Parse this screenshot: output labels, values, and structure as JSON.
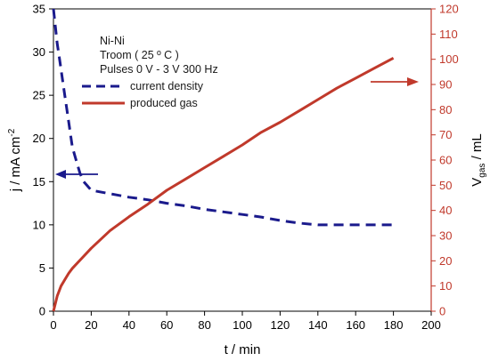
{
  "chart_data": {
    "type": "line",
    "x_label": "t / min",
    "y_left_label": "j / mA cm",
    "y_left_label_sup": "-2",
    "y_right_label": "V",
    "y_right_label_sub": "gas",
    "y_right_label_unit": " / mL",
    "xlim": [
      0,
      200
    ],
    "y_left_lim": [
      0,
      35
    ],
    "y_right_lim": [
      0,
      120
    ],
    "x_ticks": [
      0,
      20,
      40,
      60,
      80,
      100,
      120,
      140,
      160,
      180,
      200
    ],
    "y_left_ticks": [
      0,
      5,
      10,
      15,
      20,
      25,
      30,
      35
    ],
    "y_right_ticks": [
      0,
      10,
      20,
      30,
      40,
      50,
      60,
      70,
      80,
      90,
      100,
      110,
      120
    ],
    "annotations": [
      "Ni-Ni",
      "Troom ( 25 º C )",
      "Pulses 0 V - 3 V  300 Hz"
    ],
    "grid": false,
    "legend_position": "upper-left",
    "colors": {
      "current_density": "#1a1a8c",
      "produced_gas": "#c0392b",
      "right_axis": "#c0392b"
    },
    "series": [
      {
        "name": "current density",
        "axis": "left",
        "style": "dashed",
        "x": [
          0,
          1,
          2,
          3,
          4,
          5,
          6,
          8,
          10,
          12,
          14,
          16,
          18,
          20,
          30,
          40,
          50,
          60,
          70,
          80,
          90,
          100,
          110,
          120,
          130,
          140,
          160,
          180
        ],
        "y": [
          35,
          33,
          31,
          29.5,
          28,
          26.5,
          25,
          22,
          19,
          17.5,
          16,
          15,
          14.5,
          14,
          13.6,
          13.2,
          12.9,
          12.5,
          12.2,
          11.8,
          11.5,
          11.2,
          10.9,
          10.5,
          10.2,
          10,
          10,
          10
        ]
      },
      {
        "name": "produced gas",
        "axis": "right",
        "style": "solid",
        "x": [
          0,
          1,
          2,
          4,
          6,
          8,
          10,
          15,
          20,
          30,
          40,
          50,
          60,
          70,
          80,
          90,
          100,
          110,
          120,
          130,
          140,
          150,
          160,
          170,
          180
        ],
        "y": [
          0,
          3,
          6,
          10,
          12.5,
          15,
          17,
          21,
          25,
          32,
          37.5,
          42.5,
          48,
          52.5,
          57,
          61.5,
          66,
          71,
          75,
          79.5,
          84,
          88.5,
          92.5,
          96.5,
          100.5
        ]
      }
    ]
  }
}
